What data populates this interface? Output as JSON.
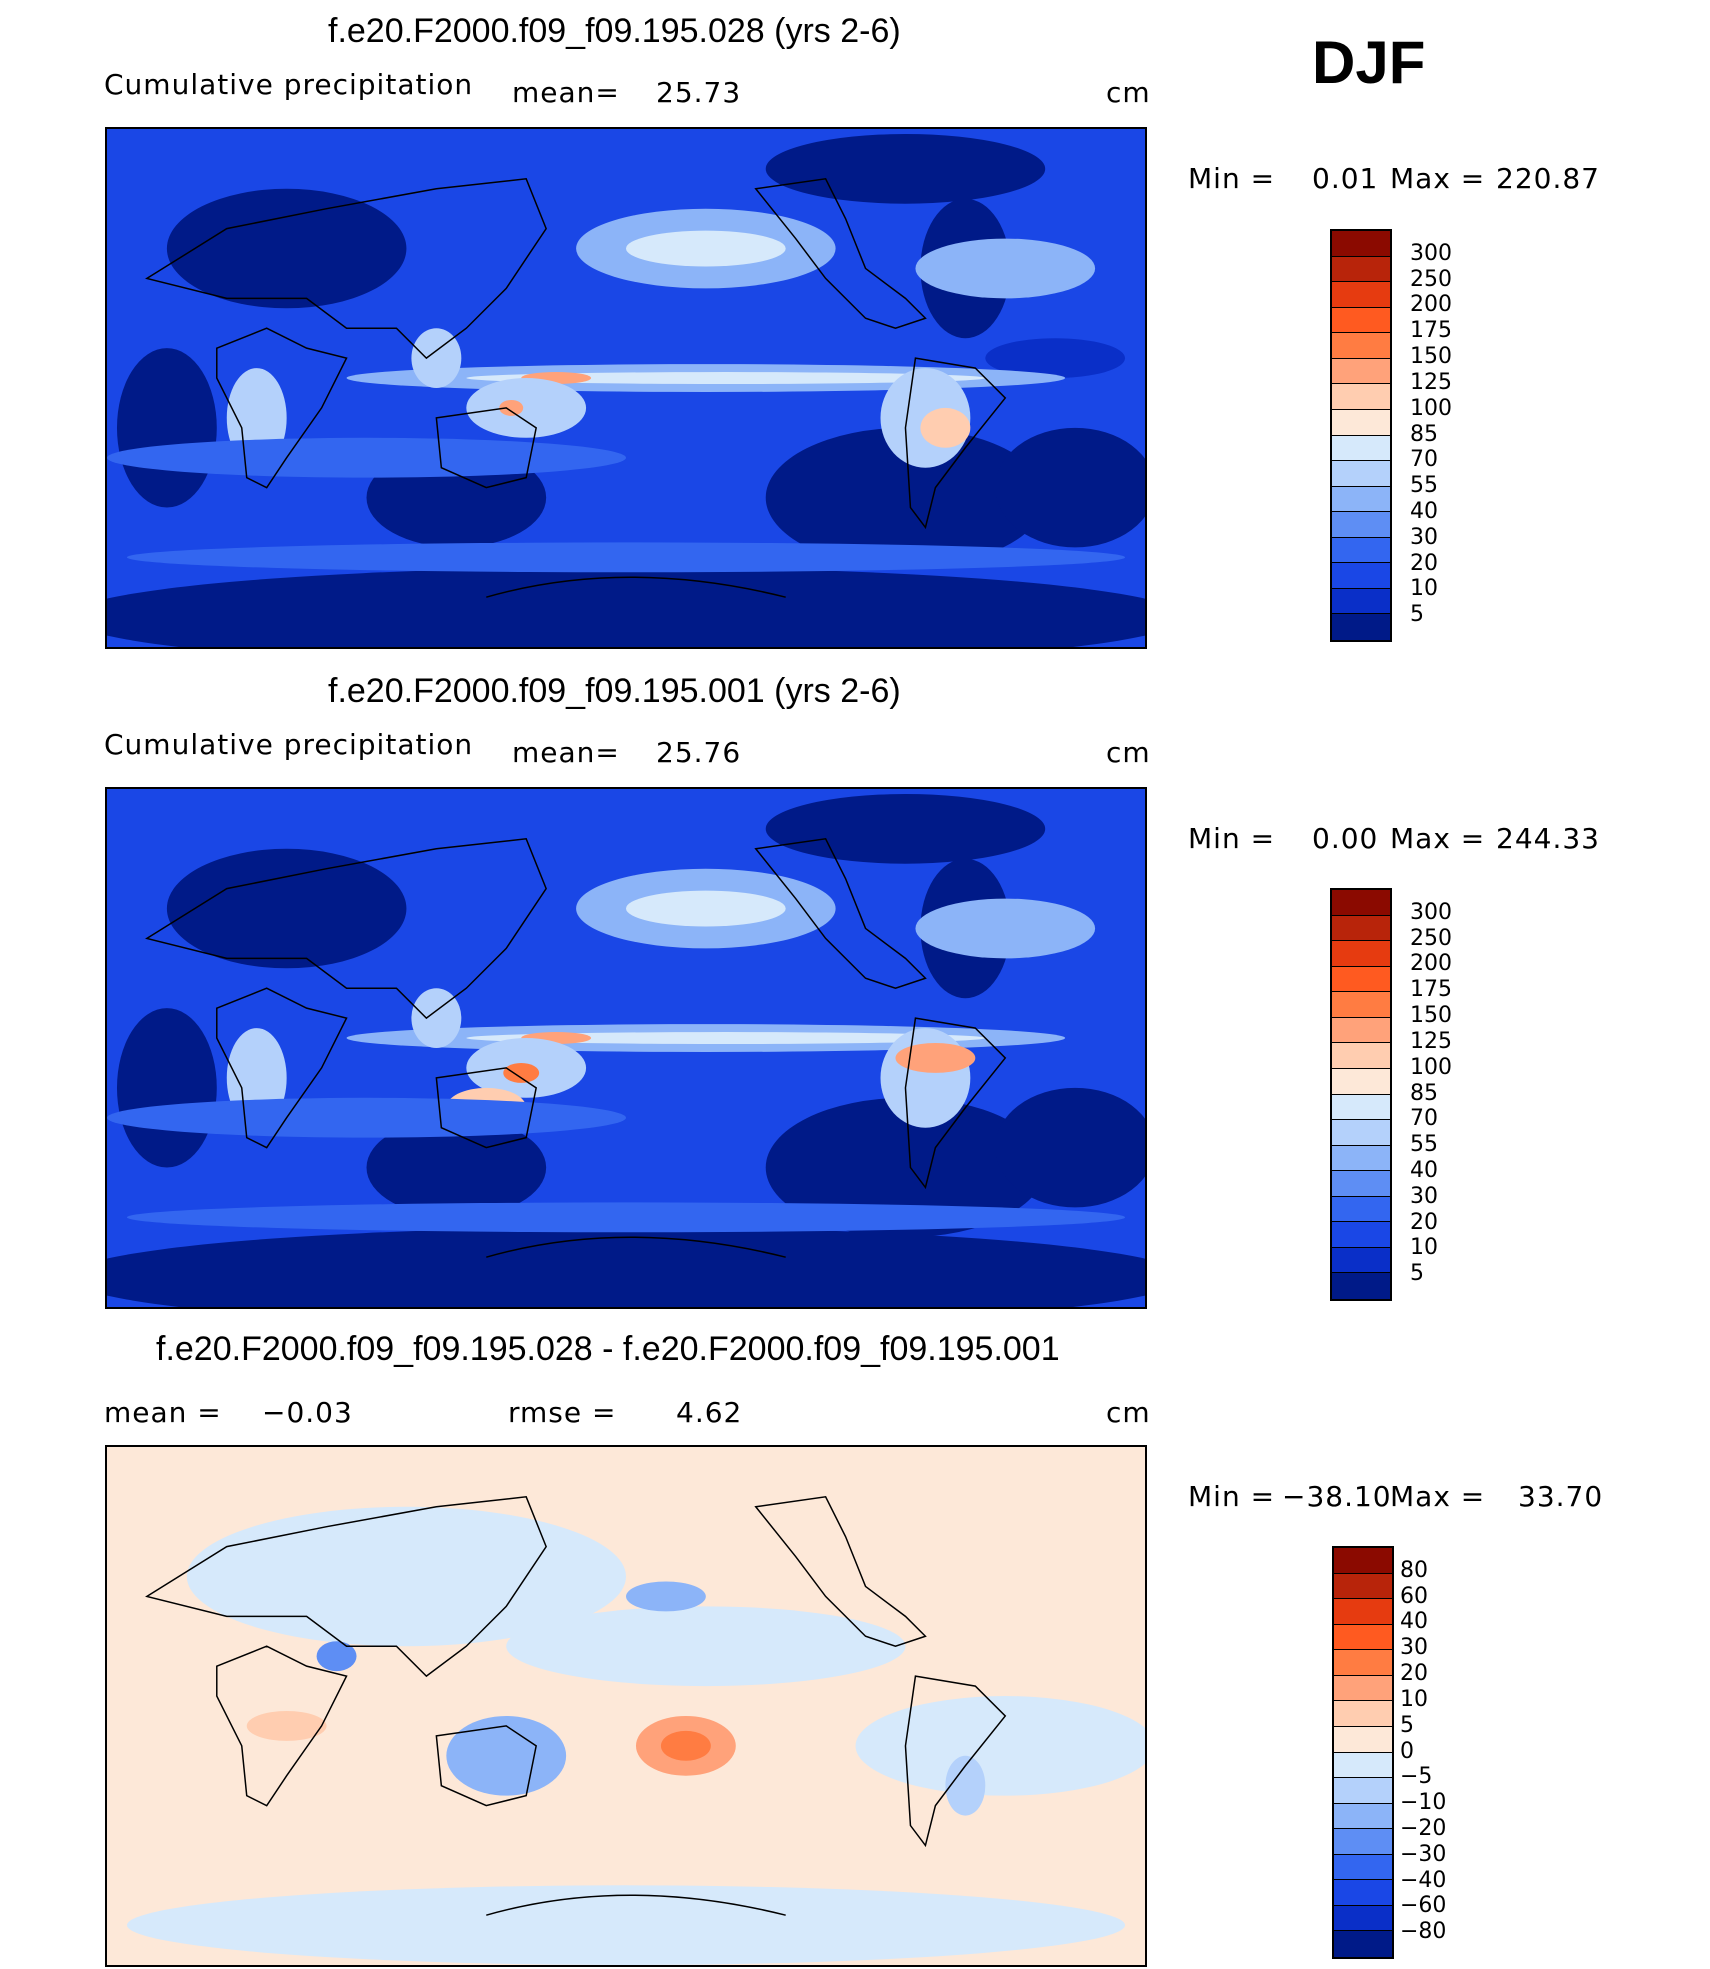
{
  "season": "DJF",
  "units": "cm",
  "panels": [
    {
      "title": "f.e20.F2000.f09_f09.195.028 (yrs 2-6)",
      "subtitle": "Cumulative precipitation",
      "mean_label": "mean=",
      "mean_value": "25.73",
      "minmax_label": "Min  =",
      "min_value": "0.01",
      "max_label": "Max  =",
      "max_value": "220.87"
    },
    {
      "title": "f.e20.F2000.f09_f09.195.001 (yrs 2-6)",
      "subtitle": "Cumulative precipitation",
      "mean_label": "mean=",
      "mean_value": "25.76",
      "minmax_label": "Min  =",
      "min_value": "0.00",
      "max_label": "Max  =",
      "max_value": "244.33"
    },
    {
      "title": "f.e20.F2000.f09_f09.195.028 - f.e20.F2000.f09_f09.195.001",
      "mean_label": "mean  =",
      "mean_value": "−0.03",
      "rmse_label": "rmse  =",
      "rmse_value": "4.62",
      "minmax_label": "Min  =",
      "min_value": "−38.10",
      "max_label": "Max  =",
      "max_value": "33.70"
    }
  ],
  "chart_data": [
    {
      "type": "heatmap",
      "title": "f.e20.F2000.f09_f09.195.028 (yrs 2-6)",
      "variable": "Cumulative precipitation",
      "units": "cm",
      "mean": 25.73,
      "min": 0.01,
      "max": 220.87,
      "colorbar_levels": [
        "300",
        "250",
        "200",
        "175",
        "150",
        "125",
        "100",
        "85",
        "70",
        "55",
        "40",
        "30",
        "20",
        "10",
        "5"
      ],
      "colorbar_colors": [
        "#8b0a00",
        "#b8240a",
        "#e63b10",
        "#ff5a20",
        "#ff7c42",
        "#ffa27a",
        "#ffcdb0",
        "#fde8d8",
        "#d6e9fb",
        "#b4d1fb",
        "#8cb4f8",
        "#5e8ef4",
        "#3366f0",
        "#1a47e6",
        "#0a2fc8",
        "#001a88"
      ]
    },
    {
      "type": "heatmap",
      "title": "f.e20.F2000.f09_f09.195.001 (yrs 2-6)",
      "variable": "Cumulative precipitation",
      "units": "cm",
      "mean": 25.76,
      "min": 0.0,
      "max": 244.33,
      "colorbar_levels": [
        "300",
        "250",
        "200",
        "175",
        "150",
        "125",
        "100",
        "85",
        "70",
        "55",
        "40",
        "30",
        "20",
        "10",
        "5"
      ],
      "colorbar_colors": [
        "#8b0a00",
        "#b8240a",
        "#e63b10",
        "#ff5a20",
        "#ff7c42",
        "#ffa27a",
        "#ffcdb0",
        "#fde8d8",
        "#d6e9fb",
        "#b4d1fb",
        "#8cb4f8",
        "#5e8ef4",
        "#3366f0",
        "#1a47e6",
        "#0a2fc8",
        "#001a88"
      ]
    },
    {
      "type": "heatmap",
      "title": "f.e20.F2000.f09_f09.195.028 - f.e20.F2000.f09_f09.195.001",
      "units": "cm",
      "mean": -0.03,
      "rmse": 4.62,
      "min": -38.1,
      "max": 33.7,
      "colorbar_levels": [
        "80",
        "60",
        "40",
        "30",
        "20",
        "10",
        "5",
        "0",
        "−5",
        "−10",
        "−20",
        "−30",
        "−40",
        "−60",
        "−80"
      ],
      "colorbar_colors": [
        "#8b0a00",
        "#b8240a",
        "#e63b10",
        "#ff5a20",
        "#ff7c42",
        "#ffa27a",
        "#ffcdb0",
        "#fde8d8",
        "#d6e9fb",
        "#b4d1fb",
        "#8cb4f8",
        "#5e8ef4",
        "#3366f0",
        "#1a47e6",
        "#0a2fc8",
        "#001a88"
      ]
    }
  ]
}
